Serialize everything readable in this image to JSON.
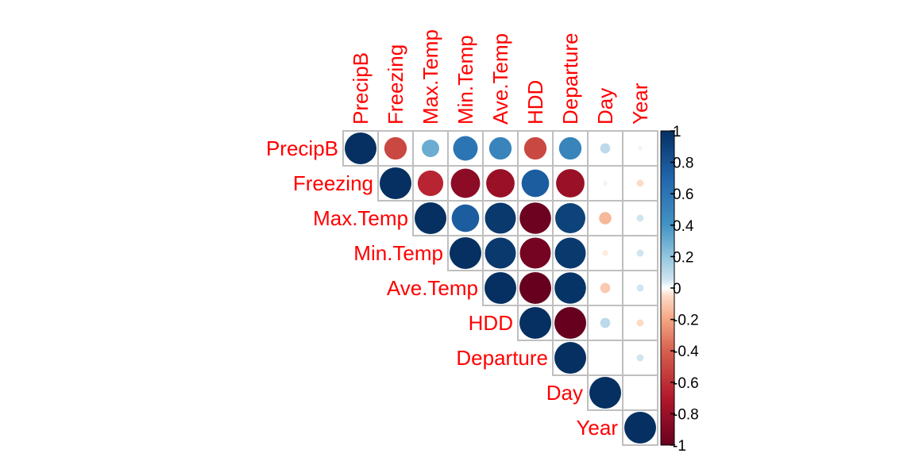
{
  "chart_data": {
    "type": "heatmap",
    "method": "circle",
    "layout": "upper-triangle",
    "variables": [
      "PrecipB",
      "Freezing",
      "Max.Temp",
      "Min.Temp",
      "Ave.Temp",
      "HDD",
      "Departure",
      "Day",
      "Year"
    ],
    "matrix": [
      [
        1.0,
        -0.5,
        0.3,
        0.6,
        0.5,
        -0.5,
        0.5,
        0.1,
        0.02
      ],
      [
        -0.5,
        1.0,
        -0.65,
        -0.85,
        -0.8,
        0.75,
        -0.8,
        0.02,
        -0.05
      ],
      [
        0.3,
        -0.65,
        1.0,
        0.75,
        0.95,
        -0.98,
        0.9,
        -0.15,
        0.05
      ],
      [
        0.6,
        -0.85,
        0.75,
        1.0,
        0.95,
        -0.95,
        0.95,
        -0.03,
        0.05
      ],
      [
        0.5,
        -0.8,
        0.95,
        0.95,
        1.0,
        -1.0,
        0.98,
        -0.1,
        0.05
      ],
      [
        -0.5,
        0.75,
        -0.98,
        -0.95,
        -1.0,
        1.0,
        -1.0,
        0.1,
        -0.05
      ],
      [
        0.5,
        -0.8,
        0.9,
        0.95,
        0.98,
        -1.0,
        1.0,
        0.0,
        0.05
      ],
      [
        0.1,
        0.02,
        -0.15,
        -0.03,
        -0.1,
        0.1,
        0.0,
        1.0,
        0.0
      ],
      [
        0.02,
        -0.05,
        0.05,
        0.05,
        0.05,
        -0.05,
        0.05,
        0.0,
        1.0
      ]
    ],
    "colorbar": {
      "range": [
        -1,
        1
      ],
      "ticks": [
        "1",
        "0.8",
        "0.6",
        "0.4",
        "0.2",
        "0",
        "-0.2",
        "-0.4",
        "-0.6",
        "-0.8",
        "-1"
      ],
      "colors": {
        "neg1": "#67001f",
        "neg07": "#b2182b",
        "neg04": "#d6604d",
        "neg02": "#f4a582",
        "neg005": "#fddbc7",
        "zero": "#ffffff",
        "pos005": "#d1e5f0",
        "pos02": "#92c5de",
        "pos04": "#4393c3",
        "pos07": "#2166ac",
        "pos1": "#053061"
      }
    },
    "label_color": "#ff0000",
    "grid_color": "#bfbfbf"
  }
}
